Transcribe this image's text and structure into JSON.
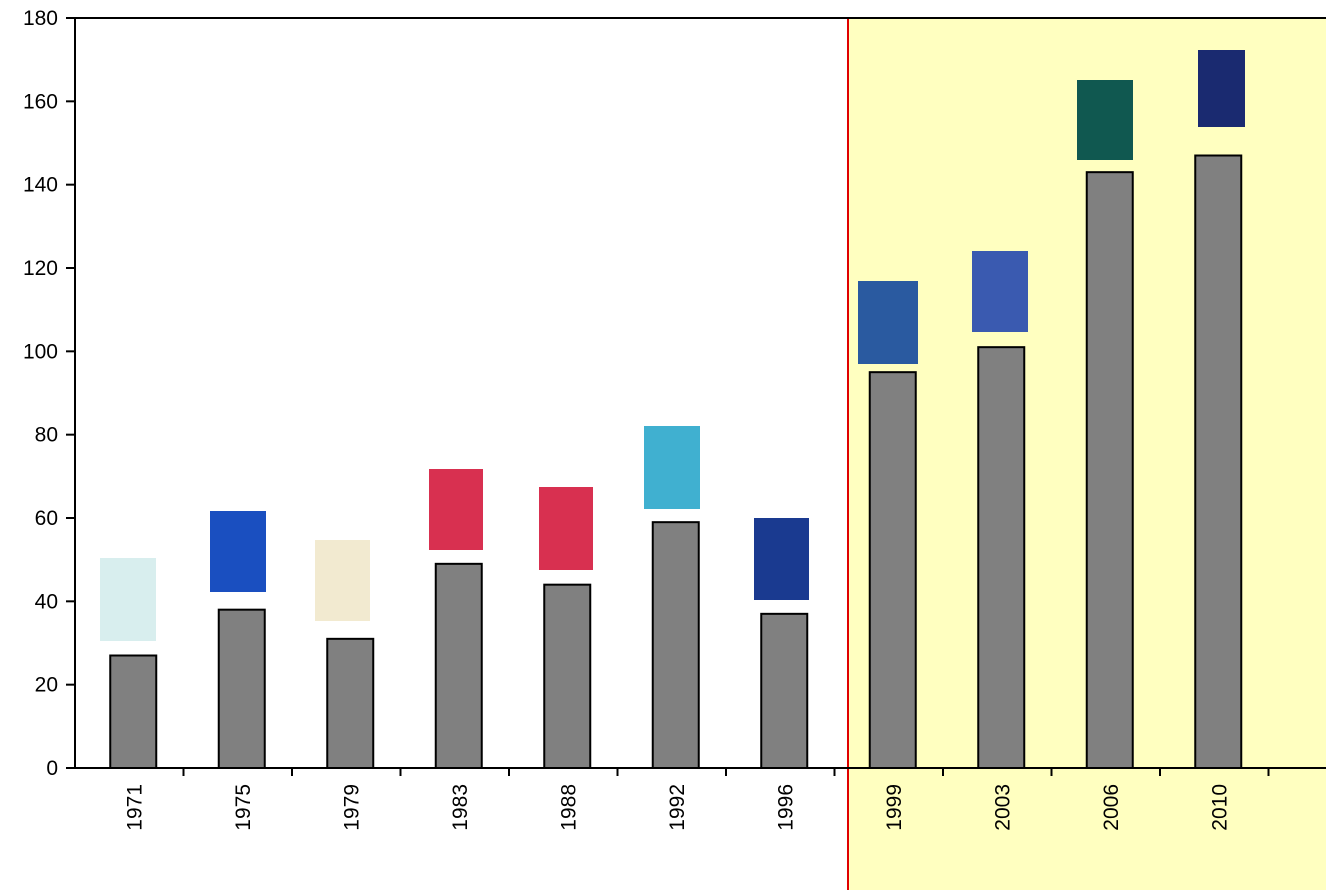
{
  "chart_data": {
    "type": "bar",
    "categories": [
      "1971",
      "1975",
      "1979",
      "1983",
      "1988",
      "1992",
      "1996",
      "1999",
      "2003",
      "2006",
      "2010"
    ],
    "values": [
      27,
      38,
      31,
      49,
      44,
      59,
      37,
      95,
      101,
      143,
      147
    ],
    "color": "#808080",
    "ylim": [
      0,
      180
    ],
    "yticks": [
      0,
      20,
      40,
      60,
      80,
      100,
      120,
      140,
      160,
      180
    ],
    "grid": false
  }
}
